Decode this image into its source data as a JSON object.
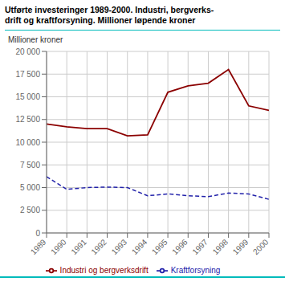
{
  "chart_data": {
    "type": "line",
    "title": "Utførte investeringer 1989-2000. Industri, bergverks-\ndrift og kraftforsyning. Millioner løpende kroner",
    "ylabel": "Millioner kroner",
    "x": [
      1989,
      1990,
      1991,
      1992,
      1993,
      1994,
      1995,
      1996,
      1997,
      1998,
      1999,
      2000
    ],
    "series": [
      {
        "name": "Kraftforsyning",
        "color": "#2222aa",
        "line_style": "dashed",
        "values": [
          6200,
          4800,
          5000,
          5050,
          5000,
          4100,
          4300,
          4100,
          4000,
          4400,
          4300,
          3700
        ]
      },
      {
        "name": "Industri og bergverksdrift",
        "color": "#8b0000",
        "line_style": "solid",
        "values": [
          12000,
          11700,
          11500,
          11500,
          10700,
          10800,
          15500,
          16200,
          16500,
          18000,
          14000,
          13500
        ]
      }
    ],
    "xlim": [
      1989,
      2000
    ],
    "xticks": [
      1989,
      1990,
      1991,
      1992,
      1993,
      1994,
      1995,
      1996,
      1997,
      1998,
      1999,
      2000
    ],
    "ylim": [
      0,
      20000
    ],
    "yticks": [
      0,
      {
        "value": 2500,
        "label": "2 500"
      },
      {
        "value": 5000,
        "label": "5 000"
      },
      {
        "value": 7500,
        "label": "7 500"
      },
      {
        "value": 10000,
        "label": "10 000"
      },
      {
        "value": 12500,
        "label": "12 500"
      },
      {
        "value": 15000,
        "label": "15 000"
      },
      {
        "value": 17500,
        "label": "17 500"
      },
      {
        "value": 20000,
        "label": "20 000"
      }
    ],
    "grid": true,
    "legend": "bottom"
  }
}
